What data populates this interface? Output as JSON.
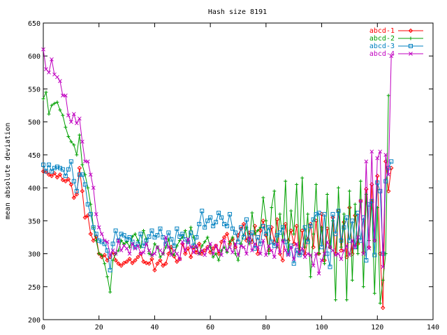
{
  "chart_data": {
    "type": "line",
    "title": "Hash size 8191",
    "xlabel": "",
    "ylabel": "mean absolute deviation",
    "xlim": [
      0,
      140
    ],
    "ylim": [
      200,
      650
    ],
    "x_ticks": [
      0,
      20,
      40,
      60,
      80,
      100,
      120,
      140
    ],
    "y_ticks": [
      200,
      250,
      300,
      350,
      400,
      450,
      500,
      550,
      600,
      650
    ],
    "grid": false,
    "legend_position": "top-right",
    "series": [
      {
        "name": "abcd-1",
        "color": "#ff0000",
        "marker": "diamond",
        "values": [
          425,
          424,
          420,
          418,
          422,
          416,
          420,
          412,
          410,
          413,
          405,
          385,
          390,
          430,
          395,
          355,
          358,
          330,
          320,
          326,
          300,
          295,
          298,
          290,
          295,
          302,
          290,
          285,
          282,
          286,
          288,
          292,
          286,
          290,
          295,
          300,
          288,
          286,
          285,
          292,
          275,
          285,
          290,
          282,
          285,
          300,
          310,
          296,
          288,
          292,
          315,
          300,
          308,
          295,
          310,
          302,
          315,
          300,
          305,
          310,
          302,
          308,
          312,
          300,
          318,
          325,
          330,
          315,
          322,
          310,
          328,
          338,
          345,
          320,
          332,
          318,
          342,
          300,
          335,
          350,
          328,
          305,
          340,
          318,
          352,
          300,
          290,
          345,
          320,
          335,
          315,
          342,
          300,
          335,
          298,
          322,
          345,
          310,
          350,
          300,
          360,
          290,
          338,
          310,
          355,
          300,
          365,
          305,
          348,
          295,
          370,
          300,
          358,
          315,
          380,
          302,
          398,
          310,
          405,
          320,
          418,
          300,
          218,
          440,
          395,
          430
        ]
      },
      {
        "name": "abcd-2",
        "color": "#00a000",
        "marker": "plus",
        "values": [
          535,
          545,
          512,
          525,
          528,
          530,
          518,
          510,
          492,
          478,
          470,
          465,
          450,
          480,
          435,
          420,
          400,
          375,
          340,
          320,
          300,
          298,
          285,
          265,
          242,
          290,
          300,
          305,
          320,
          315,
          318,
          310,
          326,
          330,
          320,
          310,
          335,
          322,
          300,
          298,
          315,
          310,
          295,
          300,
          310,
          322,
          300,
          298,
          312,
          320,
          325,
          335,
          318,
          340,
          325,
          310,
          300,
          312,
          318,
          325,
          310,
          295,
          300,
          290,
          305,
          310,
          302,
          318,
          325,
          300,
          290,
          315,
          328,
          340,
          315,
          362,
          330,
          335,
          340,
          385,
          350,
          300,
          370,
          395,
          310,
          360,
          320,
          410,
          300,
          365,
          330,
          405,
          300,
          415,
          310,
          360,
          265,
          330,
          405,
          300,
          340,
          285,
          390,
          310,
          350,
          230,
          400,
          310,
          360,
          230,
          395,
          260,
          375,
          300,
          410,
          250,
          390,
          320,
          380,
          240,
          370,
          225,
          260,
          300,
          540
        ]
      },
      {
        "name": "abcd-3",
        "color": "#0080c0",
        "marker": "square",
        "values": [
          435,
          425,
          435,
          425,
          430,
          432,
          430,
          428,
          418,
          428,
          440,
          410,
          395,
          420,
          420,
          405,
          375,
          360,
          340,
          330,
          320,
          318,
          315,
          305,
          275,
          315,
          335,
          320,
          330,
          328,
          322,
          325,
          318,
          310,
          315,
          330,
          312,
          320,
          326,
          335,
          325,
          328,
          338,
          325,
          315,
          332,
          322,
          312,
          338,
          326,
          330,
          322,
          318,
          332,
          312,
          325,
          345,
          365,
          340,
          350,
          355,
          342,
          348,
          362,
          355,
          345,
          342,
          360,
          338,
          332,
          318,
          340,
          325,
          352,
          320,
          332,
          308,
          325,
          315,
          342,
          330,
          340,
          318,
          312,
          328,
          332,
          340,
          318,
          300,
          312,
          285,
          305,
          298,
          302,
          340,
          318,
          342,
          352,
          360,
          362,
          310,
          360,
          300,
          280,
          360,
          330,
          365,
          320,
          340,
          355,
          320,
          350,
          310,
          362,
          320,
          355,
          290,
          375,
          380,
          298,
          408,
          395,
          300,
          410,
          430,
          440
        ]
      },
      {
        "name": "abcd-4",
        "color": "#c000c0",
        "marker": "cross",
        "values": [
          610,
          580,
          575,
          595,
          572,
          568,
          562,
          540,
          540,
          510,
          500,
          512,
          498,
          505,
          470,
          440,
          440,
          420,
          400,
          360,
          340,
          330,
          320,
          318,
          298,
          305,
          300,
          320,
          305,
          312,
          308,
          300,
          315,
          308,
          312,
          300,
          302,
          315,
          305,
          298,
          300,
          310,
          305,
          300,
          325,
          310,
          298,
          305,
          300,
          292,
          318,
          305,
          322,
          310,
          302,
          312,
          300,
          305,
          298,
          308,
          315,
          300,
          312,
          305,
          298,
          320,
          305,
          310,
          302,
          315,
          298,
          312,
          310,
          300,
          325,
          305,
          315,
          310,
          300,
          320,
          298,
          312,
          305,
          295,
          315,
          302,
          320,
          305,
          298,
          310,
          292,
          315,
          302,
          308,
          295,
          300,
          298,
          282,
          300,
          270,
          290,
          300,
          318,
          310,
          305,
          298,
          300,
          292,
          305,
          312,
          298,
          320,
          310,
          325,
          380,
          300,
          440,
          308,
          455,
          320,
          445,
          455,
          280,
          450,
          420,
          600
        ]
      }
    ]
  }
}
